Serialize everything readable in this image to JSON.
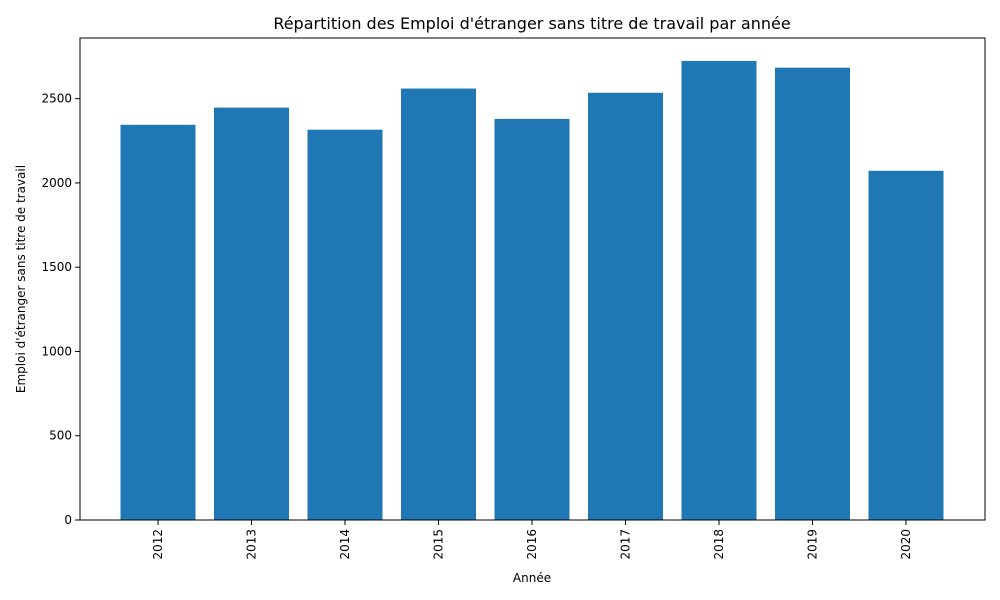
{
  "chart_data": {
    "type": "bar",
    "title": "Répartition des Emploi d'étranger sans titre de travail par année",
    "xlabel": "Année",
    "ylabel": "Emploi d'étranger sans titre de travail",
    "categories": [
      "2012",
      "2013",
      "2014",
      "2015",
      "2016",
      "2017",
      "2018",
      "2019",
      "2020"
    ],
    "values": [
      2345,
      2447,
      2316,
      2560,
      2380,
      2535,
      2724,
      2684,
      2072
    ],
    "ylim": [
      0,
      2860
    ],
    "yticks": [
      0,
      500,
      1000,
      1500,
      2000,
      2500
    ],
    "bar_color": "#1f77b4",
    "grid": false,
    "x_tick_rotation": "vertical"
  }
}
